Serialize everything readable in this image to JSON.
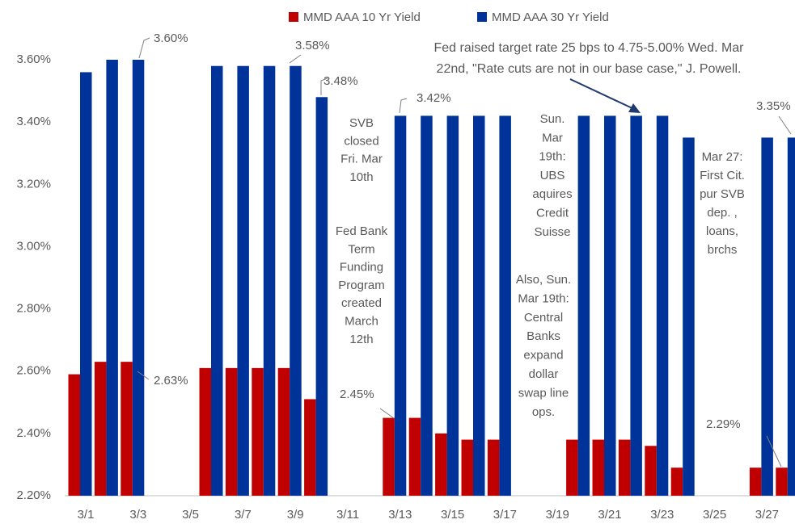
{
  "chart_data": {
    "type": "bar",
    "categories": [
      "3/1",
      null,
      "3/3",
      null,
      "3/5",
      null,
      "3/7",
      null,
      "3/9",
      null,
      "3/11",
      null,
      "3/13",
      null,
      "3/15",
      null,
      "3/17",
      null,
      "3/19",
      null,
      "3/21",
      null,
      "3/23",
      null,
      "3/25",
      null,
      "3/27",
      null
    ],
    "series": [
      {
        "name": "MMD AAA 10 Yr Yield",
        "color": "#c00000",
        "values": [
          2.59,
          2.63,
          2.63,
          null,
          null,
          2.61,
          2.61,
          2.61,
          2.61,
          2.51,
          null,
          null,
          2.45,
          2.45,
          2.4,
          2.38,
          2.38,
          null,
          null,
          2.38,
          2.38,
          2.38,
          2.36,
          2.29,
          null,
          null,
          2.29,
          2.29
        ],
        "value_labels": [
          null,
          null,
          "2.63%",
          null,
          null,
          null,
          null,
          null,
          null,
          null,
          null,
          null,
          "2.45%",
          null,
          null,
          null,
          null,
          null,
          null,
          null,
          null,
          null,
          null,
          null,
          null,
          null,
          null,
          "2.29%"
        ]
      },
      {
        "name": "MMD AAA 30 Yr Yield",
        "color": "#003399",
        "values": [
          3.56,
          3.6,
          3.6,
          null,
          null,
          3.58,
          3.58,
          3.58,
          3.58,
          3.48,
          null,
          null,
          3.42,
          3.42,
          3.42,
          3.42,
          3.42,
          null,
          null,
          3.42,
          3.42,
          3.42,
          3.42,
          3.35,
          null,
          null,
          3.35,
          3.35
        ],
        "value_labels": [
          null,
          null,
          "3.60%",
          null,
          null,
          null,
          null,
          null,
          "3.58%",
          "3.48%",
          null,
          null,
          "3.42%",
          null,
          null,
          null,
          null,
          null,
          null,
          null,
          null,
          null,
          null,
          null,
          null,
          null,
          null,
          "3.35%"
        ]
      }
    ],
    "ylim": [
      2.2,
      3.6
    ],
    "yticks": [
      {
        "value": 2.2,
        "label": "2.20%"
      },
      {
        "value": 2.4,
        "label": "2.40%"
      },
      {
        "value": 2.6,
        "label": "2.60%"
      },
      {
        "value": 2.8,
        "label": "2.80%"
      },
      {
        "value": 3.0,
        "label": "3.00%"
      },
      {
        "value": 3.2,
        "label": "3.20%"
      },
      {
        "value": 3.4,
        "label": "3.40%"
      },
      {
        "value": 3.6,
        "label": "3.60%"
      }
    ],
    "grid": false,
    "legend": "top",
    "annotations": [
      {
        "lines": [
          "SVB",
          "closed",
          "Fri. Mar",
          "10th"
        ]
      },
      {
        "lines": [
          "Fed Bank",
          "Term",
          "Funding",
          "Program",
          "created",
          "March",
          "12th"
        ]
      },
      {
        "lines": [
          "Sun.",
          "Mar",
          "19th:",
          "UBS",
          "aquires",
          "Credit",
          "Suisse"
        ]
      },
      {
        "lines": [
          "Also, Sun.",
          "Mar 19th:",
          "Central",
          "Banks",
          "expand",
          "dollar",
          "swap line",
          "ops."
        ]
      },
      {
        "lines": [
          "Mar 27:",
          "First Cit.",
          "pur SVB",
          "dep. ,",
          "loans,",
          "brchs"
        ]
      },
      {
        "lines": [
          "Fed raised target rate 25 bps to 4.75-5.00% Wed. Mar",
          "22nd, \"Rate cuts are not in our base case,\" J. Powell."
        ]
      }
    ]
  }
}
